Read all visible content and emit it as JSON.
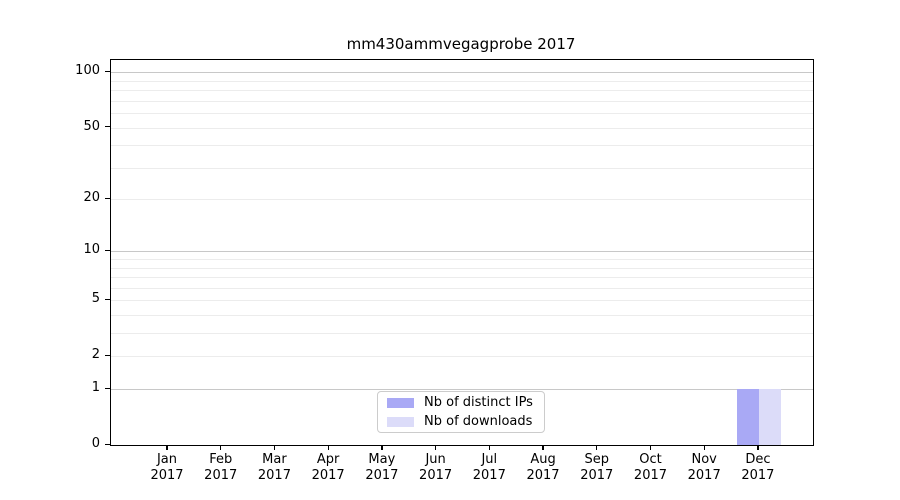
{
  "title": "mm430ammvegagprobe 2017",
  "chart_data": {
    "type": "bar",
    "title": "mm430ammvegagprobe 2017",
    "categories": [
      "Jan 2017",
      "Feb 2017",
      "Mar 2017",
      "Apr 2017",
      "May 2017",
      "Jun 2017",
      "Jul 2017",
      "Aug 2017",
      "Sep 2017",
      "Oct 2017",
      "Nov 2017",
      "Dec 2017"
    ],
    "x_months": [
      "Jan",
      "Feb",
      "Mar",
      "Apr",
      "May",
      "Jun",
      "Jul",
      "Aug",
      "Sep",
      "Oct",
      "Nov",
      "Dec"
    ],
    "x_year": "2017",
    "series": [
      {
        "name": "Nb of distinct IPs",
        "color": "#a9a9f5",
        "values": [
          0,
          0,
          0,
          0,
          0,
          0,
          0,
          0,
          0,
          0,
          0,
          1
        ]
      },
      {
        "name": "Nb of downloads",
        "color": "#dcdcf9",
        "values": [
          0,
          0,
          0,
          0,
          0,
          0,
          0,
          0,
          0,
          0,
          0,
          1
        ]
      }
    ],
    "y_axis": {
      "scale": "log1p",
      "ticks": [
        0,
        1,
        2,
        5,
        10,
        20,
        50,
        100
      ],
      "tick_labels": [
        "0",
        "1",
        "2",
        "5",
        "10",
        "20",
        "50",
        "100"
      ],
      "range": [
        0,
        117
      ],
      "grid": true
    },
    "grid": {
      "major_values": [
        1,
        10,
        100
      ],
      "minor_values": [
        2,
        3,
        4,
        5,
        6,
        7,
        8,
        9,
        20,
        30,
        40,
        50,
        60,
        70,
        80,
        90
      ],
      "major_color": "#c8c8c8",
      "minor_color": "#ececec"
    },
    "legend_position": "lower center"
  },
  "legend": {
    "items_note": "labels bound from chart_data.series names"
  }
}
